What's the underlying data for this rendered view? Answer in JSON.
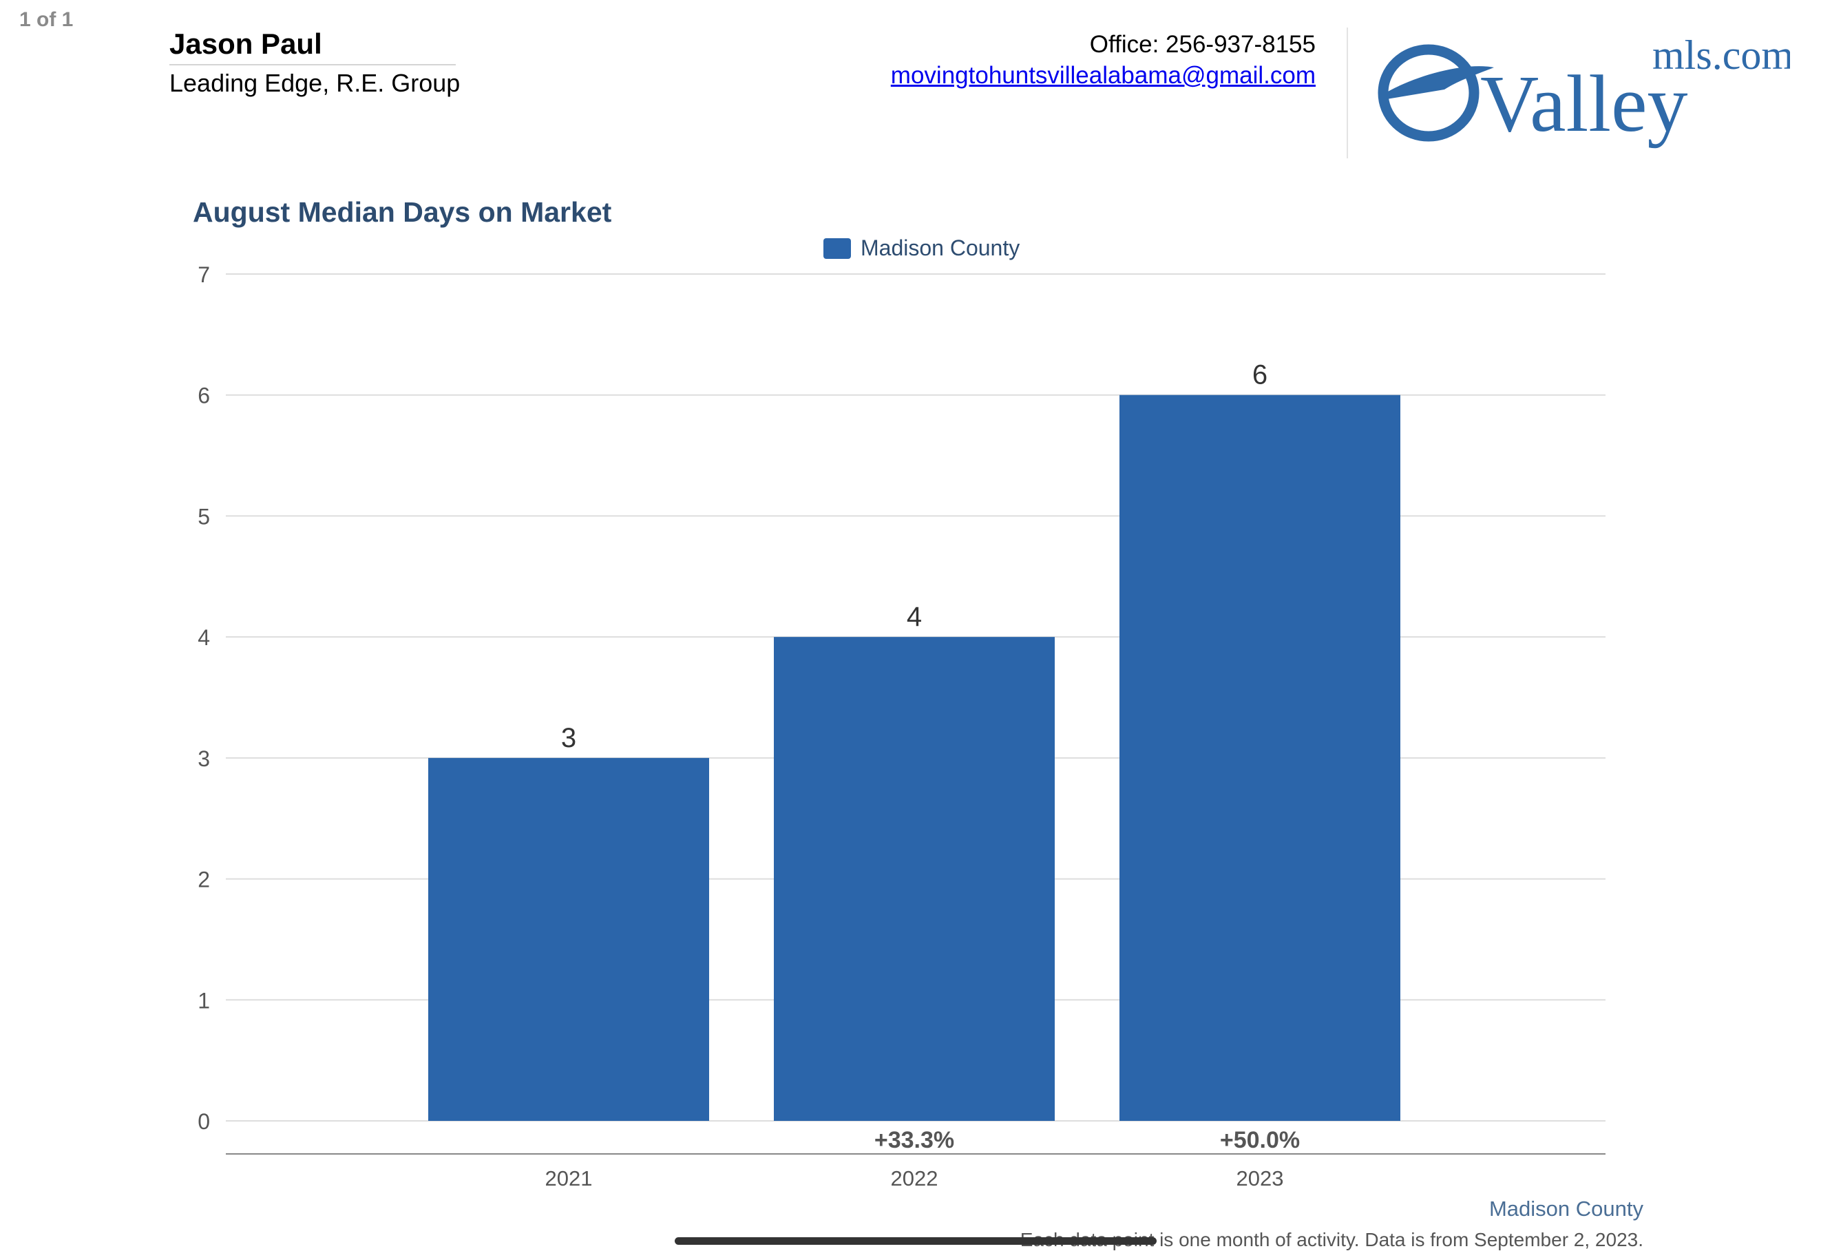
{
  "page": {
    "counter": "1 of 1"
  },
  "agent": {
    "name": "Jason Paul",
    "company": "Leading Edge, R.E. Group",
    "office": "Office: 256-937-8155",
    "email": "movingtohuntsvillealabama@gmail.com"
  },
  "logo": {
    "main": "Valley",
    "suffix": "mls.com",
    "color": "#2f6aa9"
  },
  "colors": {
    "bar": "#2b65aa",
    "title": "#2d4c70",
    "axis": "#555555",
    "grid": "#dddddd"
  },
  "chart_data": {
    "type": "bar",
    "title": "August Median Days on Market",
    "categories": [
      "2021",
      "2022",
      "2023"
    ],
    "series": [
      {
        "name": "Madison County",
        "values": [
          3,
          4,
          6
        ]
      }
    ],
    "data_labels": [
      "3",
      "4",
      "6"
    ],
    "change_labels": [
      "",
      "+33.3%",
      "+50.0%"
    ],
    "y_ticks": [
      0,
      1,
      2,
      3,
      4,
      5,
      6,
      7
    ],
    "ylim": [
      0,
      7
    ],
    "grid": true,
    "legend_position": "top-center",
    "xlabel": "",
    "ylabel": ""
  },
  "footer": {
    "region": "Madison County",
    "note": "Each data point is one month of activity. Data is from September 2, 2023."
  }
}
